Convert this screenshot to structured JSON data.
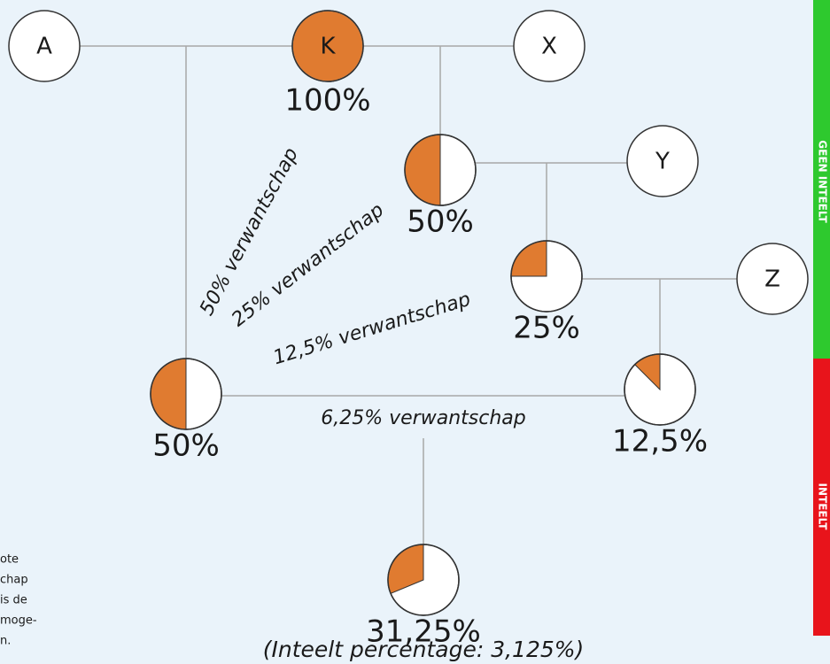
{
  "nodes": [
    {
      "label": "A"
    },
    {
      "label": "K",
      "fill": 100,
      "percent": "100%"
    },
    {
      "label": "X"
    },
    {
      "fill": 50,
      "percent": "50%"
    },
    {
      "label": "Y"
    },
    {
      "fill": 25,
      "percent": "25%"
    },
    {
      "label": "Z"
    },
    {
      "fill": 50,
      "percent": "50%"
    },
    {
      "fill": 12.5,
      "percent": "12,5%"
    },
    {
      "fill": 31.25,
      "percent": "31,25%",
      "note": "(Inteelt percentage: 3,125%)"
    }
  ],
  "relations": [
    "50% verwantschap",
    "25% verwantschap",
    "12,5% verwantschap",
    "6,25% verwantschap"
  ],
  "scale": {
    "top": "GEEN INTEELT",
    "bottom": "INTEELT"
  },
  "side_text": [
    "ote",
    "chap",
    "is de",
    "moge-",
    "n."
  ]
}
